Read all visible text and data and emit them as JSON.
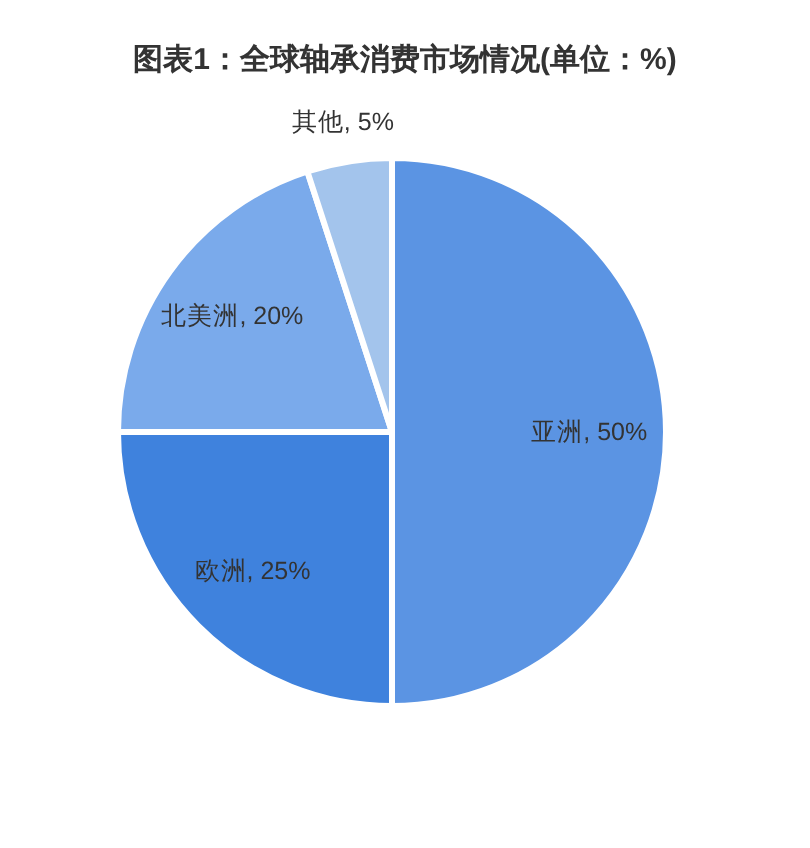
{
  "chart_data": {
    "type": "pie",
    "title": "图表1：全球轴承消费市场情况(单位：%)",
    "categories": [
      "亚洲",
      "欧洲",
      "北美洲",
      "其他"
    ],
    "values": [
      50,
      25,
      20,
      5
    ],
    "value_labels": [
      "50%",
      "25%",
      "20%",
      "5%"
    ],
    "colors": [
      "#5b94e3",
      "#3f82dd",
      "#7aaaeb",
      "#a3c4ec"
    ]
  }
}
